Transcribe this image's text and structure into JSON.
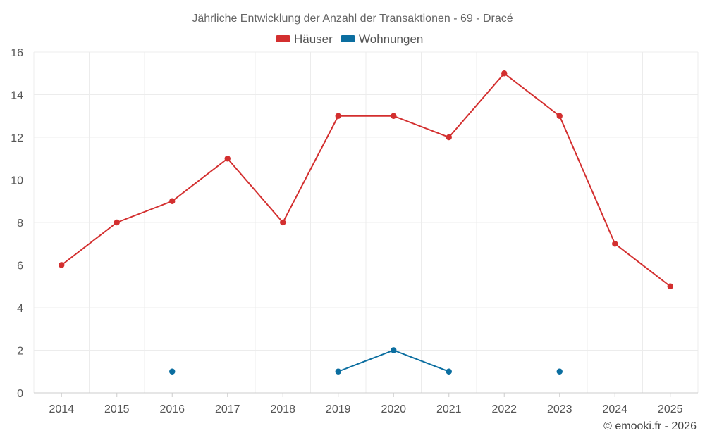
{
  "chart_data": {
    "type": "line",
    "title": "Jährliche Entwicklung der Anzahl der Transaktionen - 69 - Dracé",
    "xlabel": "",
    "ylabel": "",
    "categories": [
      "2014",
      "2015",
      "2016",
      "2017",
      "2018",
      "2019",
      "2020",
      "2021",
      "2022",
      "2023",
      "2024",
      "2025"
    ],
    "ylim": [
      0,
      16
    ],
    "yticks": [
      0,
      2,
      4,
      6,
      8,
      10,
      12,
      14,
      16
    ],
    "grid": true,
    "legend_position": "top-center",
    "series": [
      {
        "name": "Häuser",
        "color": "#d32f2f",
        "values": [
          6,
          8,
          9,
          11,
          8,
          13,
          13,
          12,
          15,
          13,
          7,
          5
        ]
      },
      {
        "name": "Wohnungen",
        "color": "#0b6ea0",
        "values": [
          null,
          null,
          1,
          null,
          null,
          1,
          2,
          1,
          null,
          1,
          null,
          null
        ]
      }
    ],
    "credit": "© emooki.fr - 2026"
  }
}
